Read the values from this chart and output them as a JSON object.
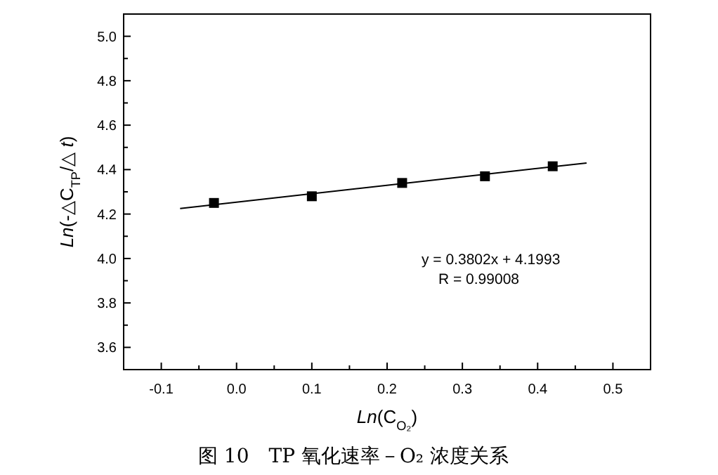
{
  "chart_data": {
    "type": "scatter",
    "xlabel": "*Ln*(C$_{O₂}$)",
    "ylabel": "*Ln*(-△C$_{TP}$/△ *t*)",
    "xlim": [
      -0.15,
      0.55
    ],
    "ylim": [
      3.5,
      5.1
    ],
    "xticks": [
      -0.1,
      {
        "value": 0.0,
        "label": "0.0"
      },
      0.1,
      0.2,
      0.3,
      0.4,
      0.5
    ],
    "yticks": [
      3.6,
      3.8,
      {
        "value": 4.0,
        "label": "4.0"
      },
      4.2,
      4.4,
      4.6,
      4.8,
      {
        "value": 5.0,
        "label": "5.0"
      }
    ],
    "grid": false,
    "series": [
      {
        "marker": "square",
        "color": "#000000",
        "x": [
          -0.03,
          0.1,
          0.22,
          0.33,
          0.42
        ],
        "values": [
          4.25,
          4.28,
          4.34,
          4.37,
          4.415
        ]
      },
      {
        "type": "line",
        "color": "#000000",
        "x": [
          -0.075,
          0.465
        ],
        "values": [
          4.225,
          4.43
        ]
      }
    ],
    "annotations": [
      "y = 0.3802x + 4.1993",
      "R = 0.99008",
      "图 10　TP 氧化速率－O₂ 浓度关系"
    ]
  }
}
